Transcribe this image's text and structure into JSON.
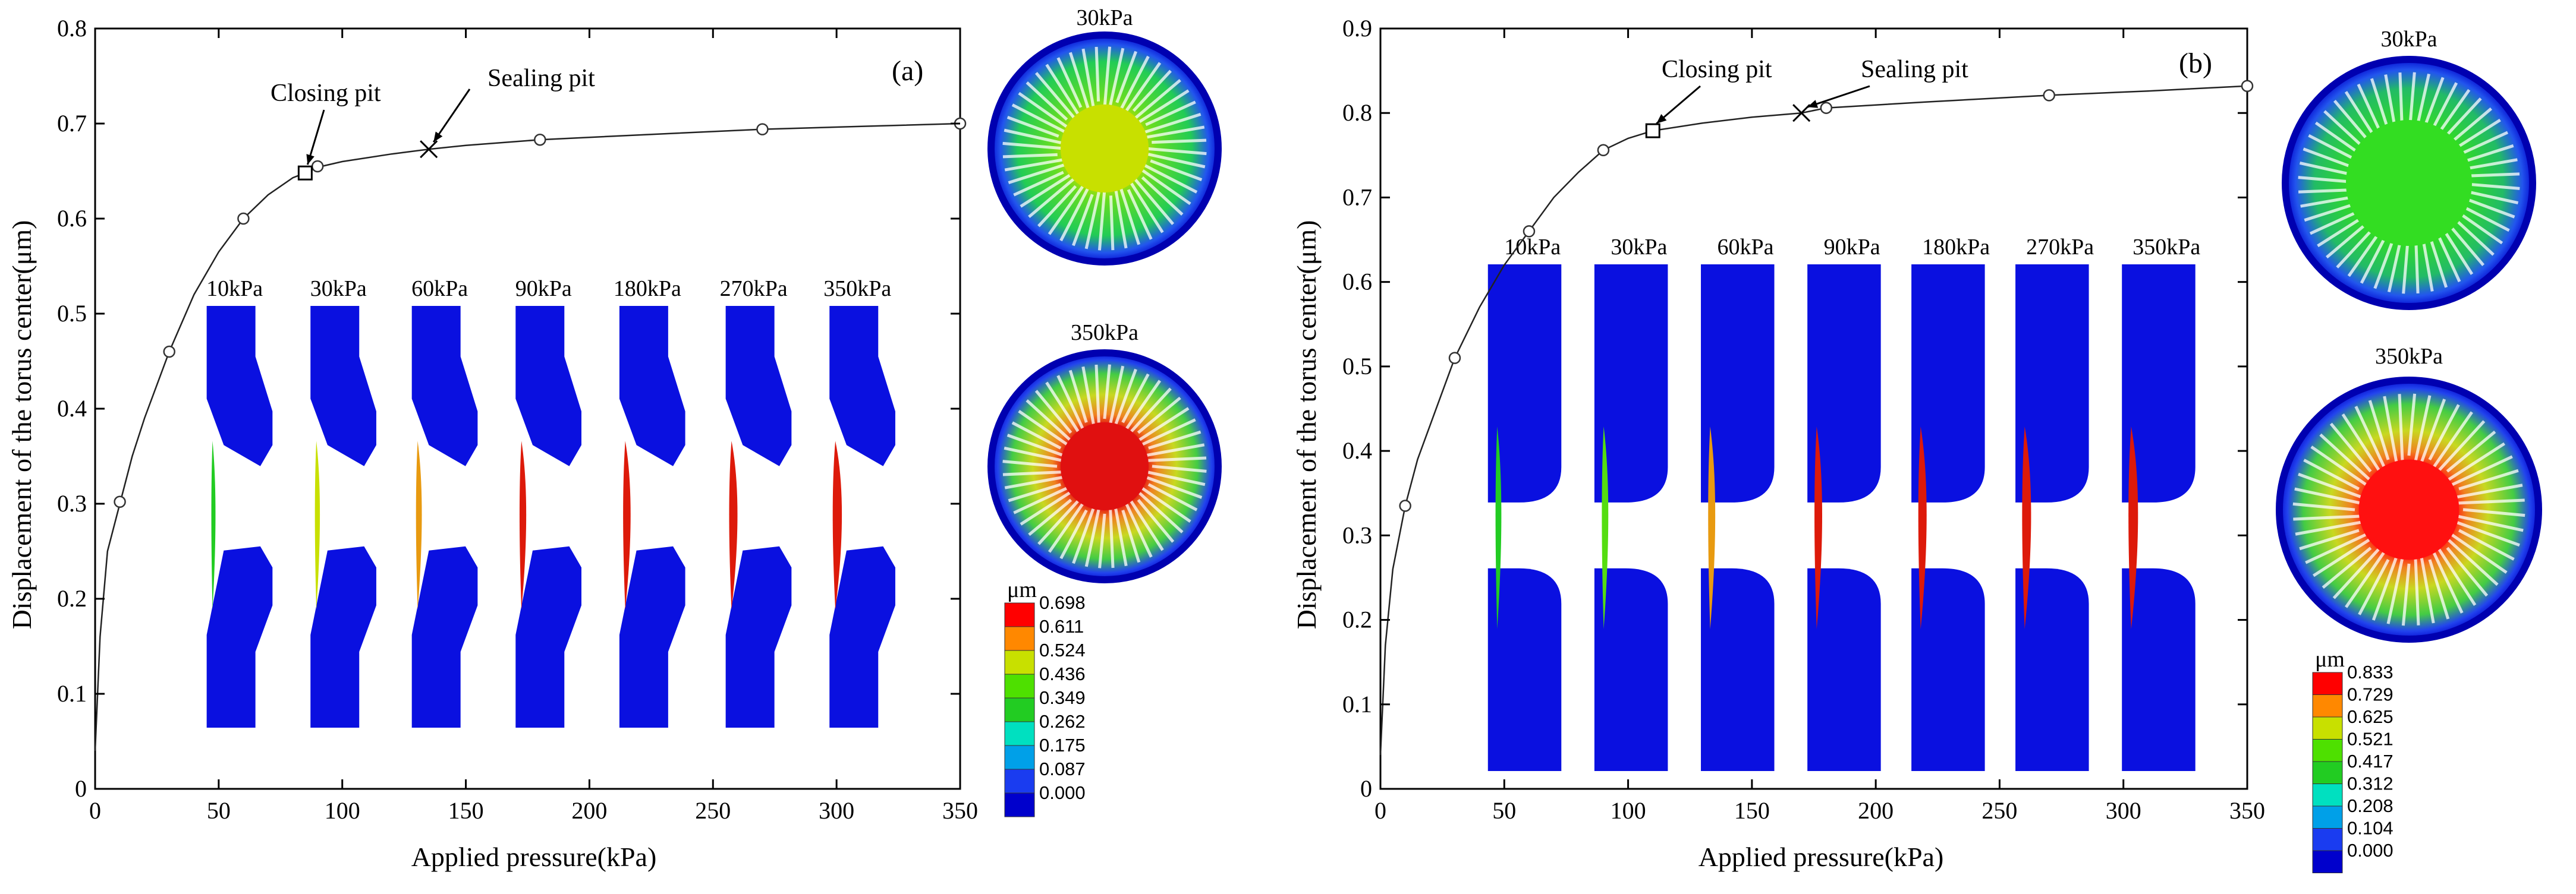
{
  "chart_data": [
    {
      "type": "line",
      "panel_label": "(a)",
      "xlabel": "Applied pressure(kPa)",
      "ylabel": "Displacement of the torus center(μm)",
      "xlim": [
        0,
        350
      ],
      "ylim": [
        0,
        0.8
      ],
      "xticks": [
        "0",
        "50",
        "100",
        "150",
        "200",
        "250",
        "300",
        "350"
      ],
      "yticks": [
        "0",
        "0.1",
        "0.2",
        "0.3",
        "0.4",
        "0.5",
        "0.6",
        "0.7",
        "0.8"
      ],
      "curve": {
        "x": [
          0,
          2,
          5,
          10,
          15,
          20,
          30,
          40,
          50,
          60,
          70,
          80,
          85,
          90,
          100,
          120,
          135,
          150,
          180,
          220,
          270,
          310,
          350
        ],
        "y": [
          0.04,
          0.16,
          0.25,
          0.3,
          0.35,
          0.39,
          0.46,
          0.52,
          0.565,
          0.6,
          0.625,
          0.643,
          0.648,
          0.654,
          0.66,
          0.668,
          0.673,
          0.677,
          0.683,
          0.688,
          0.694,
          0.697,
          0.7
        ]
      },
      "markers": {
        "x": [
          10,
          30,
          60,
          90,
          180,
          270,
          350
        ],
        "y": [
          0.302,
          0.46,
          0.6,
          0.655,
          0.683,
          0.694,
          0.7
        ]
      },
      "closing_pit": {
        "label": "Closing pit",
        "x": 85,
        "y": 0.648
      },
      "sealing_pit": {
        "label": "Sealing pit",
        "x": 135,
        "y": 0.673
      },
      "slices": [
        {
          "label": "10kPa",
          "x": 55,
          "color": "#22cc22"
        },
        {
          "label": "30kPa",
          "x": 97,
          "color": "#c8e000"
        },
        {
          "label": "60kPa",
          "x": 138,
          "color": "#e89a10"
        },
        {
          "label": "90kPa",
          "x": 180,
          "color": "#dd1a0a"
        },
        {
          "label": "180kPa",
          "x": 222,
          "color": "#dd1a0a"
        },
        {
          "label": "270kPa",
          "x": 265,
          "color": "#dd1a0a"
        },
        {
          "label": "350kPa",
          "x": 307,
          "color": "#dd1a0a"
        }
      ],
      "colorbar": {
        "unit": "μm",
        "values": [
          "0.698",
          "0.611",
          "0.524",
          "0.436",
          "0.349",
          "0.262",
          "0.175",
          "0.087",
          "0.000"
        ]
      },
      "discs": [
        {
          "label": "30kPa",
          "center_color": "#c8e000"
        },
        {
          "label": "350kPa",
          "center_color": "#e01010"
        }
      ]
    },
    {
      "type": "line",
      "panel_label": "(b)",
      "xlabel": "Applied pressure(kPa)",
      "ylabel": "Displacement of the torus center(μm)",
      "xlim": [
        0,
        350
      ],
      "ylim": [
        0,
        0.9
      ],
      "xticks": [
        "0",
        "50",
        "100",
        "150",
        "200",
        "250",
        "300",
        "350"
      ],
      "yticks": [
        "0",
        "0.1",
        "0.2",
        "0.3",
        "0.4",
        "0.5",
        "0.6",
        "0.7",
        "0.8",
        "0.9"
      ],
      "curve": {
        "x": [
          0,
          2,
          5,
          10,
          15,
          20,
          30,
          40,
          50,
          60,
          70,
          80,
          90,
          100,
          110,
          130,
          150,
          170,
          180,
          220,
          270,
          310,
          350
        ],
        "y": [
          0.04,
          0.17,
          0.26,
          0.335,
          0.39,
          0.43,
          0.51,
          0.57,
          0.62,
          0.66,
          0.7,
          0.73,
          0.756,
          0.77,
          0.779,
          0.788,
          0.795,
          0.8,
          0.806,
          0.813,
          0.821,
          0.826,
          0.832
        ]
      },
      "markers": {
        "x": [
          10,
          30,
          60,
          90,
          180,
          270,
          350
        ],
        "y": [
          0.335,
          0.51,
          0.66,
          0.756,
          0.806,
          0.821,
          0.832
        ]
      },
      "closing_pit": {
        "label": "Closing pit",
        "x": 110,
        "y": 0.779
      },
      "sealing_pit": {
        "label": "Sealing pit",
        "x": 170,
        "y": 0.8
      },
      "slices": [
        {
          "label": "10kPa",
          "x": 59,
          "color": "#22cc22"
        },
        {
          "label": "30kPa",
          "x": 102,
          "color": "#55dd11"
        },
        {
          "label": "60kPa",
          "x": 145,
          "color": "#e89a10"
        },
        {
          "label": "90kPa",
          "x": 188,
          "color": "#dd1a0a"
        },
        {
          "label": "180kPa",
          "x": 230,
          "color": "#dd1a0a"
        },
        {
          "label": "270kPa",
          "x": 272,
          "color": "#dd1a0a"
        },
        {
          "label": "350kPa",
          "x": 315,
          "color": "#dd1a0a"
        }
      ],
      "colorbar": {
        "unit": "μm",
        "values": [
          "0.833",
          "0.729",
          "0.625",
          "0.521",
          "0.417",
          "0.312",
          "0.208",
          "0.104",
          "0.000"
        ]
      },
      "discs": [
        {
          "label": "30kPa",
          "center_color": "#33dd22"
        },
        {
          "label": "350kPa",
          "center_color": "#ff1010"
        }
      ]
    }
  ],
  "colorbar_colors": [
    "#ff0000",
    "#ff8800",
    "#c8e000",
    "#4ee000",
    "#22cc22",
    "#00e0c0",
    "#00a0e8",
    "#1a3cf0",
    "#0000cc"
  ]
}
